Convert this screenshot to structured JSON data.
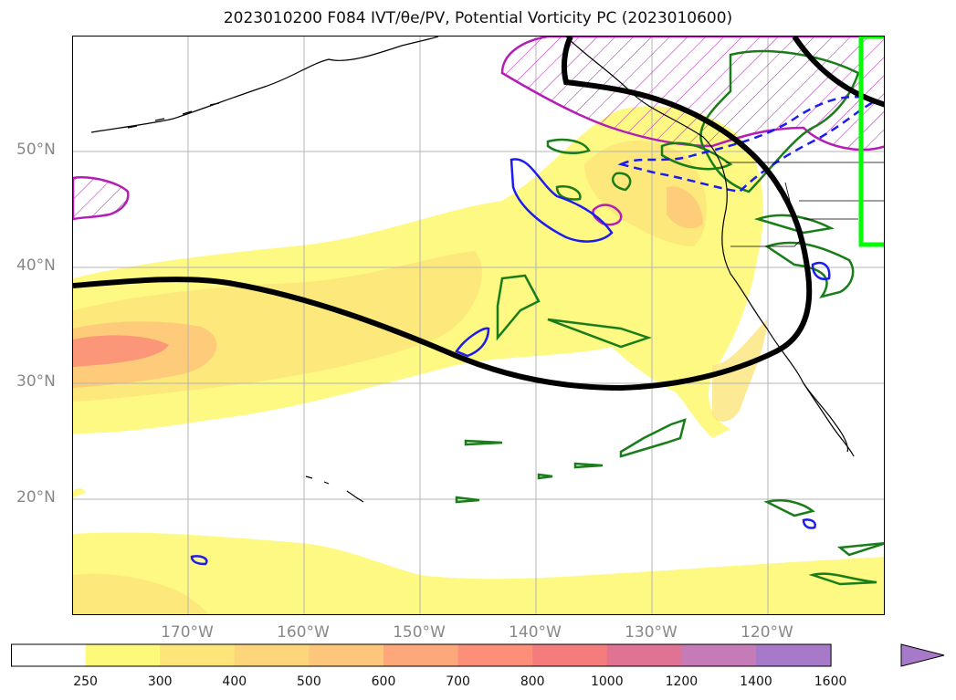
{
  "title": "2023010200 F084 IVT/θe/PV, Potential Vorticity PC (2023010600)",
  "map": {
    "lon_range": [
      -180,
      -110
    ],
    "lat_range": [
      10,
      60
    ],
    "lat_labels": [
      "50°N",
      "40°N",
      "30°N",
      "20°N"
    ],
    "lon_labels": [
      "170°W",
      "160°W",
      "150°W",
      "140°W",
      "130°W",
      "120°W"
    ],
    "grid": true
  },
  "colorbar": {
    "levels": [
      "250",
      "300",
      "400",
      "500",
      "600",
      "700",
      "800",
      "1000",
      "1200",
      "1400",
      "1600"
    ],
    "colors": [
      "#ffffff",
      "#fdfa7a",
      "#fde57a",
      "#fdd57a",
      "#fdc67a",
      "#fda87a",
      "#fd8f7a",
      "#f47c7c",
      "#e07394",
      "#c57bb7",
      "#a779c9"
    ],
    "extend": "max"
  },
  "contour_colors": {
    "jet_line": "#000000",
    "pv_magenta": "#b41eb4",
    "theta_green": "#1a7d1a",
    "pv_blue": "#1c1cf0",
    "box_lime": "#00ff00"
  }
}
